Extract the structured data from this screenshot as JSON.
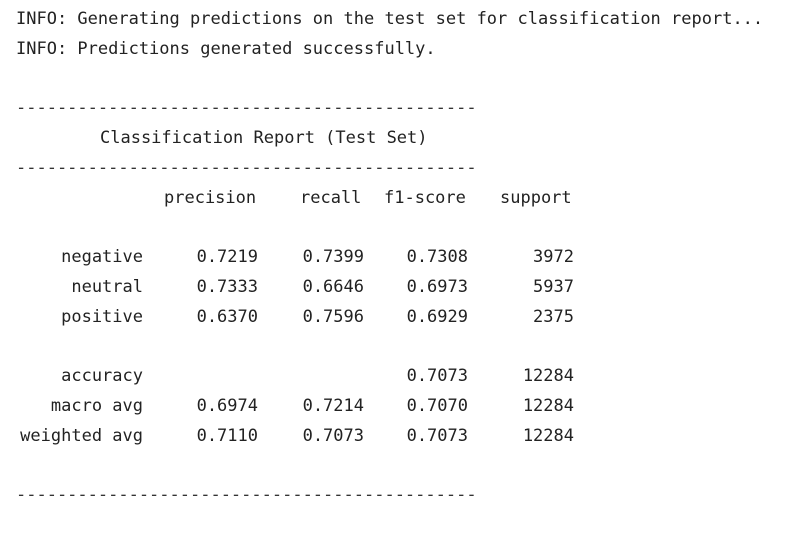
{
  "log": [
    "INFO: Generating predictions on the test set for classification report...",
    "INFO: Predictions generated successfully."
  ],
  "separator": "---------------------------------------------",
  "report": {
    "title": "Classification Report (Test Set)",
    "columns": [
      "precision",
      "recall",
      "f1-score",
      "support"
    ],
    "rows": [
      {
        "label": "negative",
        "precision": "0.7219",
        "recall": "0.7399",
        "f1": "0.7308",
        "support": "3972"
      },
      {
        "label": "neutral",
        "precision": "0.7333",
        "recall": "0.6646",
        "f1": "0.6973",
        "support": "5937"
      },
      {
        "label": "positive",
        "precision": "0.6370",
        "recall": "0.7596",
        "f1": "0.6929",
        "support": "2375"
      }
    ],
    "summary": [
      {
        "label": "accuracy",
        "precision": "",
        "recall": "",
        "f1": "0.7073",
        "support": "12284"
      },
      {
        "label": "macro avg",
        "precision": "0.6974",
        "recall": "0.7214",
        "f1": "0.7070",
        "support": "12284"
      },
      {
        "label": "weighted avg",
        "precision": "0.7110",
        "recall": "0.7073",
        "f1": "0.7073",
        "support": "12284"
      }
    ]
  }
}
